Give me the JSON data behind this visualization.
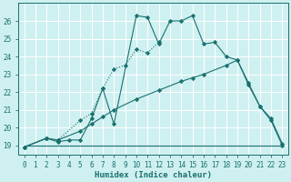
{
  "xlabel": "Humidex (Indice chaleur)",
  "xlim": [
    -0.5,
    23.5
  ],
  "ylim": [
    18.5,
    27.0
  ],
  "yticks": [
    19,
    20,
    21,
    22,
    23,
    24,
    25,
    26
  ],
  "xticks": [
    0,
    1,
    2,
    3,
    4,
    5,
    6,
    7,
    8,
    9,
    10,
    11,
    12,
    13,
    14,
    15,
    16,
    17,
    18,
    19,
    20,
    21,
    22,
    23
  ],
  "bg_color": "#cff0f0",
  "line_color": "#1a7070",
  "grid_color": "#ffffff",
  "series1_x": [
    0,
    2,
    3,
    4,
    5,
    6,
    7,
    8,
    10,
    11,
    12,
    13,
    14,
    15,
    16,
    17,
    18,
    19,
    20,
    21,
    22,
    23
  ],
  "series1_y": [
    18.9,
    19.4,
    19.2,
    19.3,
    19.3,
    20.5,
    22.2,
    20.2,
    26.3,
    26.2,
    24.7,
    26.0,
    26.0,
    26.3,
    24.7,
    24.8,
    24.0,
    23.8,
    22.5,
    21.2,
    20.4,
    19.0
  ],
  "series2_x": [
    0,
    2,
    3,
    5,
    6,
    7,
    8,
    9,
    10,
    11,
    12
  ],
  "series2_y": [
    18.9,
    19.4,
    19.3,
    20.4,
    20.8,
    22.2,
    23.3,
    23.5,
    24.4,
    24.2,
    24.8
  ],
  "series3_x": [
    0,
    2,
    3,
    5,
    6,
    7,
    8,
    10,
    12,
    14,
    15,
    16,
    18,
    19,
    20,
    21,
    22,
    23
  ],
  "series3_y": [
    18.9,
    19.4,
    19.3,
    19.8,
    20.2,
    20.6,
    21.0,
    21.6,
    22.1,
    22.6,
    22.8,
    23.0,
    23.5,
    23.8,
    22.4,
    21.2,
    20.5,
    19.1
  ],
  "series4_x": [
    0,
    19,
    23
  ],
  "series4_y": [
    19.0,
    19.0,
    19.0
  ]
}
